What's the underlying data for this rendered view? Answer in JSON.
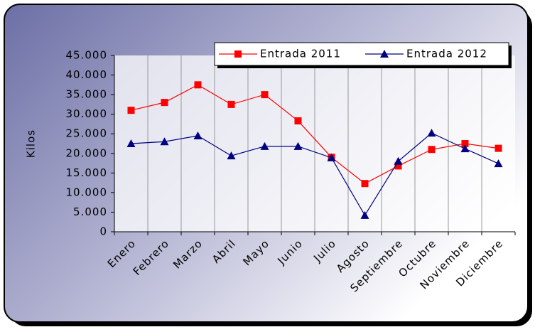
{
  "chart_data": {
    "type": "line",
    "y_label": "Kilos",
    "categories": [
      "Enero",
      "Febrero",
      "Marzo",
      "Abril",
      "Mayo",
      "Junio",
      "Julio",
      "Agosto",
      "Septiembre",
      "Octubre",
      "Noviembre",
      "Diciembre"
    ],
    "series": [
      {
        "name": "Entrada 2011",
        "color": "#ff0000",
        "marker": "square",
        "values": [
          31000,
          33000,
          37500,
          32500,
          35000,
          28300,
          19000,
          12300,
          16800,
          21000,
          22500,
          21300
        ]
      },
      {
        "name": "Entrada 2012",
        "color": "#000080",
        "marker": "triangle",
        "values": [
          22500,
          23000,
          24500,
          19400,
          21800,
          21800,
          18900,
          4200,
          18000,
          25200,
          21200,
          17400
        ]
      }
    ],
    "ylim": [
      0,
      45000
    ],
    "yticks": [
      0,
      {
        "value": 5000,
        "label": "5.000"
      },
      {
        "value": 10000,
        "label": "10.000"
      },
      {
        "value": 15000,
        "label": "15.000"
      },
      {
        "value": 20000,
        "label": "20.000"
      },
      {
        "value": 25000,
        "label": "25.000"
      },
      {
        "value": 30000,
        "label": "30.000"
      },
      {
        "value": 35000,
        "label": "35.000"
      },
      {
        "value": 40000,
        "label": "40.000"
      },
      {
        "value": 45000,
        "label": "45.000"
      }
    ],
    "legend": "top-right"
  }
}
